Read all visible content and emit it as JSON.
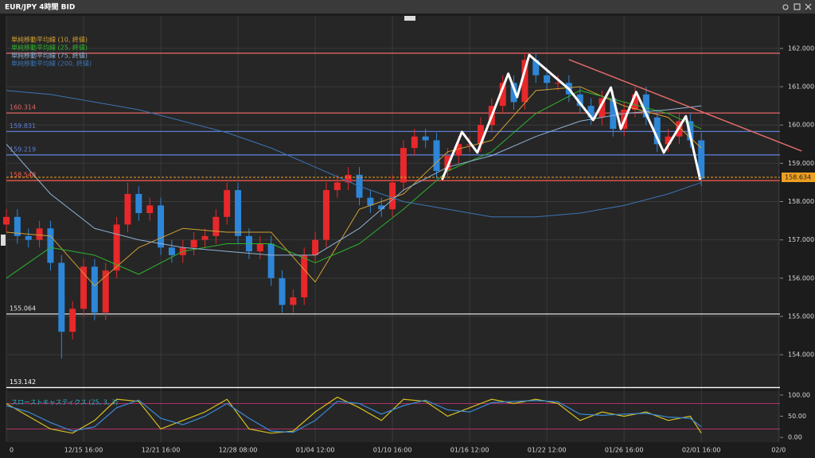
{
  "window": {
    "title": "EUR/JPY 4時間 BID"
  },
  "chart_data": [
    {
      "type": "candlestick",
      "categories": [
        "0",
        null,
        null,
        null,
        null,
        null,
        null,
        "12/15 16:00",
        null,
        null,
        null,
        null,
        null,
        null,
        "12/21 16:00",
        null,
        null,
        null,
        null,
        null,
        null,
        "12/28 08:00",
        null,
        null,
        null,
        null,
        null,
        null,
        "01/04 12:00",
        null,
        null,
        null,
        null,
        null,
        null,
        "01/10 16:00",
        null,
        null,
        null,
        null,
        null,
        null,
        "01/16 12:00",
        null,
        null,
        null,
        null,
        null,
        null,
        "01/22 12:00",
        null,
        null,
        null,
        null,
        null,
        null,
        "01/26 16:00",
        null,
        null,
        null,
        null,
        null,
        null,
        "02/01 16:00",
        null,
        null,
        null,
        null,
        null,
        null,
        "02/0"
      ],
      "open": [
        157.4,
        157.6,
        157.1,
        157.0,
        157.3,
        156.4,
        154.6,
        155.2,
        156.3,
        155.1,
        156.2,
        157.4,
        158.2,
        157.7,
        157.9,
        156.8,
        156.6,
        156.8,
        157.0,
        157.1,
        157.6,
        158.3,
        157.1,
        156.7,
        156.9,
        156.0,
        155.3,
        155.5,
        156.6,
        157.0,
        158.3,
        158.5,
        158.7,
        158.1,
        157.9,
        157.8,
        158.5,
        159.4,
        159.7,
        159.6,
        158.8,
        159.2,
        159.5,
        159.5,
        160.0,
        160.5,
        161.1,
        160.6,
        161.7,
        161.3,
        161.1,
        161.1,
        160.8,
        160.5,
        160.2,
        160.7,
        159.9,
        160.4,
        160.8,
        160.2,
        159.5,
        159.7,
        160.1,
        159.6,
        null,
        null,
        null,
        null,
        null,
        null,
        null
      ],
      "high": [
        157.8,
        157.8,
        157.3,
        157.5,
        157.5,
        156.6,
        155.4,
        156.5,
        156.5,
        156.4,
        157.6,
        158.5,
        158.4,
        158.1,
        158.1,
        157.0,
        157.0,
        157.2,
        157.3,
        157.8,
        158.5,
        158.5,
        157.3,
        157.1,
        157.1,
        156.2,
        155.7,
        156.8,
        157.2,
        158.5,
        158.7,
        158.9,
        158.9,
        158.3,
        158.1,
        158.7,
        159.6,
        159.9,
        159.9,
        159.8,
        159.4,
        159.7,
        159.7,
        160.2,
        160.7,
        161.3,
        161.3,
        161.9,
        161.9,
        161.5,
        161.3,
        161.3,
        161.0,
        160.7,
        160.9,
        160.9,
        160.6,
        161.0,
        161.0,
        160.4,
        159.9,
        160.3,
        160.3,
        159.8,
        null,
        null,
        null,
        null,
        null,
        null,
        null
      ],
      "low": [
        157.2,
        156.9,
        156.8,
        156.8,
        156.2,
        153.9,
        154.4,
        155.0,
        154.9,
        154.9,
        156.0,
        157.2,
        157.5,
        157.5,
        156.6,
        156.4,
        156.4,
        156.6,
        156.8,
        156.9,
        157.4,
        156.9,
        156.5,
        156.5,
        155.8,
        155.1,
        155.1,
        155.3,
        156.4,
        156.8,
        158.1,
        158.3,
        157.9,
        157.7,
        157.6,
        157.6,
        158.3,
        159.2,
        159.4,
        158.6,
        158.6,
        159.0,
        159.3,
        159.3,
        159.8,
        160.3,
        160.4,
        160.4,
        161.1,
        160.9,
        160.9,
        160.6,
        160.3,
        160.0,
        160.0,
        159.7,
        159.7,
        160.2,
        160.0,
        159.3,
        159.3,
        159.5,
        159.4,
        158.4,
        null,
        null,
        null,
        null,
        null,
        null,
        null
      ],
      "close": [
        157.6,
        157.1,
        157.0,
        157.3,
        156.4,
        154.6,
        155.2,
        156.3,
        155.1,
        156.2,
        157.4,
        158.2,
        157.7,
        157.9,
        156.8,
        156.6,
        156.8,
        157.0,
        157.1,
        157.6,
        158.3,
        157.1,
        156.7,
        156.9,
        156.0,
        155.3,
        155.5,
        156.6,
        157.0,
        158.3,
        158.5,
        158.7,
        158.1,
        157.9,
        157.8,
        158.5,
        159.4,
        159.7,
        159.6,
        158.8,
        159.2,
        159.5,
        159.5,
        160.0,
        160.5,
        161.1,
        160.6,
        161.7,
        161.3,
        161.1,
        161.1,
        160.8,
        160.5,
        160.2,
        160.7,
        159.9,
        160.4,
        160.8,
        160.2,
        159.5,
        159.7,
        160.1,
        159.6,
        158.6,
        null,
        null,
        null,
        null,
        null,
        null,
        null
      ],
      "up_color": "#e8282a",
      "down_color": "#2d86d8",
      "series": [
        {
          "name": "単純移動平均線 (10, 終値)",
          "color": "#d2a034",
          "x": [
            0,
            4,
            8,
            12,
            16,
            20,
            24,
            28,
            32,
            36,
            40,
            44,
            48,
            52,
            56,
            60,
            63
          ],
          "values": [
            157.2,
            157.1,
            155.8,
            156.8,
            157.3,
            157.2,
            157.2,
            155.9,
            157.8,
            158.2,
            159.3,
            159.6,
            160.9,
            161.0,
            160.5,
            160.2,
            159.4
          ]
        },
        {
          "name": "単純移動平均線 (25, 終値)",
          "color": "#2cb42c",
          "x": [
            0,
            4,
            8,
            12,
            16,
            20,
            24,
            28,
            32,
            36,
            40,
            44,
            48,
            52,
            56,
            60,
            63
          ],
          "values": [
            156.0,
            156.8,
            156.6,
            156.1,
            156.7,
            156.9,
            156.9,
            156.4,
            156.9,
            157.8,
            158.8,
            159.3,
            160.3,
            160.9,
            160.6,
            160.3,
            159.9
          ]
        },
        {
          "name": "単純移動平均線 (75, 終値)",
          "color": "#8fb2d6",
          "x": [
            0,
            4,
            8,
            12,
            16,
            20,
            24,
            28,
            32,
            36,
            40,
            44,
            48,
            52,
            56,
            60,
            63
          ],
          "values": [
            159.5,
            158.2,
            157.3,
            157.0,
            156.8,
            156.7,
            156.6,
            156.6,
            157.3,
            158.3,
            158.9,
            159.2,
            159.7,
            160.1,
            160.3,
            160.4,
            160.5
          ]
        },
        {
          "name": "単純移動平均線 (200, 終値)",
          "color": "#3b74b4",
          "x": [
            0,
            4,
            8,
            12,
            16,
            20,
            24,
            28,
            32,
            36,
            40,
            44,
            48,
            52,
            56,
            60,
            63
          ],
          "values": [
            160.9,
            160.8,
            160.6,
            160.4,
            160.1,
            159.8,
            159.4,
            158.9,
            158.4,
            158.0,
            157.8,
            157.6,
            157.6,
            157.7,
            157.9,
            158.2,
            158.5
          ]
        }
      ],
      "ylim": [
        153.13,
        162.85
      ],
      "yticks": [
        {
          "value": 154,
          "label": "154.000"
        },
        {
          "value": 155,
          "label": "155.000"
        },
        {
          "value": 156,
          "label": "156.000"
        },
        {
          "value": 157,
          "label": "157.000"
        },
        {
          "value": 158,
          "label": "158.000"
        },
        {
          "value": 159,
          "label": "159.000"
        },
        {
          "value": 160,
          "label": "160.000"
        },
        {
          "value": 161,
          "label": "161.000"
        },
        {
          "value": 162,
          "label": "162.000"
        }
      ],
      "grid": true,
      "levels": [
        {
          "value": 161.875,
          "color": "#e06464",
          "show_label": false
        },
        {
          "value": 160.314,
          "color": "#e06464",
          "show_label": true
        },
        {
          "value": 159.831,
          "color": "#5c7cd2",
          "show_label": true
        },
        {
          "value": 159.219,
          "color": "#5c7cd2",
          "show_label": true
        },
        {
          "value": 158.548,
          "color": "#ff5a4a",
          "show_label": true
        },
        {
          "value": 155.064,
          "color": "#e0e0e0",
          "show_label": true
        },
        {
          "value": 153.142,
          "color": "#ffffff",
          "show_label": true
        }
      ],
      "current_price": {
        "value": 158.634,
        "color": "#f0a020"
      },
      "drawings": [
        {
          "color": "#ffffff",
          "width": 3,
          "x": [
            39.5,
            41.3,
            42.7,
            45.5,
            46.3,
            47.4,
            51.0,
            53.2,
            54.8,
            55.7,
            57.1,
            59.6,
            61.6,
            62.9
          ],
          "values": [
            158.57,
            159.82,
            159.28,
            161.34,
            160.73,
            161.83,
            160.94,
            160.13,
            160.98,
            159.9,
            160.86,
            159.28,
            160.23,
            158.57
          ]
        },
        {
          "color": "#e06a6a",
          "width": 1.5,
          "x": [
            51.0,
            72.1
          ],
          "values": [
            161.71,
            159.32
          ]
        }
      ]
    },
    {
      "type": "line",
      "title": "スローストキャスティクス (25, 3, 3)",
      "title_color": "#2fb0c8",
      "series": [
        {
          "color": "#d6c020",
          "x": [
            0,
            2,
            4,
            6,
            8,
            10,
            12,
            14,
            16,
            18,
            20,
            22,
            24,
            26,
            28,
            30,
            32,
            34,
            36,
            38,
            40,
            42,
            44,
            46,
            48,
            50,
            52,
            54,
            56,
            58,
            60,
            62,
            63
          ],
          "values": [
            80,
            50,
            20,
            10,
            40,
            90,
            85,
            20,
            40,
            60,
            90,
            20,
            10,
            15,
            60,
            95,
            70,
            40,
            90,
            85,
            50,
            70,
            90,
            80,
            90,
            80,
            40,
            60,
            50,
            60,
            40,
            50,
            10
          ]
        },
        {
          "color": "#3a8ad8",
          "x": [
            0,
            2,
            4,
            6,
            8,
            10,
            12,
            14,
            16,
            18,
            20,
            22,
            24,
            26,
            28,
            30,
            32,
            34,
            36,
            38,
            40,
            42,
            44,
            46,
            48,
            50,
            52,
            54,
            56,
            58,
            60,
            62,
            63
          ],
          "values": [
            75,
            60,
            35,
            15,
            25,
            70,
            88,
            45,
            30,
            50,
            80,
            45,
            15,
            12,
            40,
            85,
            80,
            55,
            75,
            88,
            65,
            60,
            82,
            85,
            87,
            84,
            55,
            52,
            55,
            57,
            48,
            45,
            25
          ]
        }
      ],
      "ylim": [
        -11,
        109
      ],
      "yticks": [
        {
          "value": 0,
          "label": "0.00"
        },
        {
          "value": 50,
          "label": "50.00"
        },
        {
          "value": 100,
          "label": "100.00"
        }
      ],
      "levels": [
        {
          "value": 80,
          "color": "#b0306a"
        },
        {
          "value": 20,
          "color": "#b0306a"
        }
      ]
    }
  ]
}
